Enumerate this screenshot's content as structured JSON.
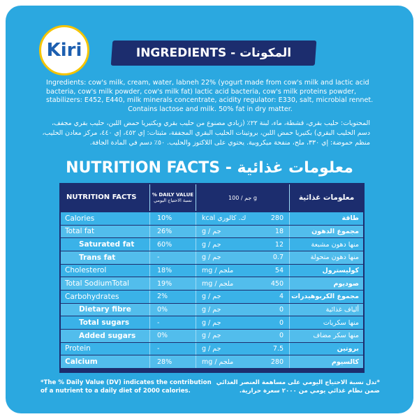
{
  "logo": "Kiri",
  "ingredients": {
    "title": "INGREDIENTS - المكونات",
    "english": "Ingredients: cow's milk, cream, water, labneh 22% (yogurt made from cow's milk and lactic acid bacteria, cow's milk powder, cow's milk fat) lactic acid bacteria, cow's milk proteins powder, stabilizers: E452, E440, milk minerals concentrate, acidity regulator: E330, salt, microbial rennet.",
    "english_note": "Contains lactose and milk. 50% fat in dry matter.",
    "arabic": "المحتويات: حليب بقري، قشطة، ماء، لبنة ٢٢٪ (زبادي مصنوع من حليب بقري وبكتيريا حمض اللبن، حليب بقري مجفف، دسم الحليب البقري) بكتيريا حمض اللبن، بروتينات الحليب البقري المجففة، مثبتات: إي ٤٥٢، إي ٤٤٠، مركز معادن الحليب، منظم حموضة: إي ٣٣٠، ملح، منفحة ميكروبية. يحتوي على اللاكتوز والحليب. ٥٠٪ دسم في المادة الجافة."
  },
  "nutrition": {
    "title": "NUTRITION FACTS - معلومات غذائية",
    "header": {
      "name": "NUTRITION FACTS",
      "dv": "% DAILY VALUE",
      "dv_ar": "نسبة الاحتياج اليومي",
      "per": "جم / 100 g",
      "name_ar": "معلومات غذائية"
    },
    "rows": [
      {
        "name": "Calories",
        "dv": "10%",
        "unit": "ك. كالوري kcal",
        "value": "280",
        "name_ar": "طاقة"
      },
      {
        "name": "Total fat",
        "dv": "26%",
        "unit": "جم / g",
        "value": "18",
        "name_ar": "مجموع الدهون"
      },
      {
        "name": "Saturated fat",
        "dv": "60%",
        "unit": "جم / g",
        "value": "12",
        "name_ar": "منها دهون مشبعة",
        "sub": true
      },
      {
        "name": "Trans fat",
        "dv": "-",
        "unit": "جم / g",
        "value": "0.7",
        "name_ar": "منها دهون متحولة",
        "sub": true
      },
      {
        "name": "Cholesterol",
        "dv": "18%",
        "unit": "ملجم / mg",
        "value": "54",
        "name_ar": "كوليسترول"
      },
      {
        "name": "Total SodiumTotal",
        "dv": "19%",
        "unit": "ملجم / mg",
        "value": "450",
        "name_ar": "صوديوم"
      },
      {
        "name": "Carbohydrates",
        "dv": "2%",
        "unit": "جم / g",
        "value": "4",
        "name_ar": "مجموع الكربوهيدرات"
      },
      {
        "name": "Dietary fibre",
        "dv": "0%",
        "unit": "جم / g",
        "value": "0",
        "name_ar": "ألياف غذائية",
        "sub": true
      },
      {
        "name": "Total sugars",
        "dv": "-",
        "unit": "جم / g",
        "value": "0",
        "name_ar": "منها سكريات",
        "sub": true
      },
      {
        "name": "Added sugars",
        "dv": "0%",
        "unit": "جم / g",
        "value": "0",
        "name_ar": "منها سكر مضاف",
        "sub": true
      },
      {
        "name": "Protein",
        "dv": "-",
        "unit": "جم / g",
        "value": "7.5",
        "name_ar": "بروتين"
      },
      {
        "name": "Calcium",
        "dv": "28%",
        "unit": "ملجم / mg",
        "value": "280",
        "name_ar": "كالسيوم",
        "bold": true
      }
    ],
    "footnote": "*The % Daily Value (DV) indicates the contribution of a nutrient to a daily diet of 2000 calories.",
    "footnote_ar": "*تدل نسبة الاحتياج اليومي على مساهمة العنصر الغذائي ضمن نظام غذائي يومي من ٢٠٠٠ سعرة حرارية."
  }
}
